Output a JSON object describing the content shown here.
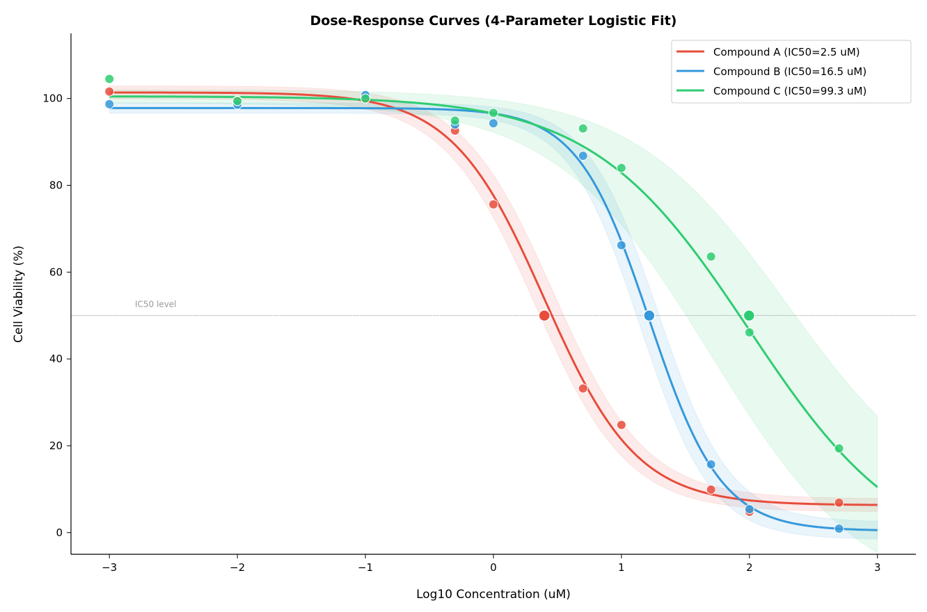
{
  "chart_data": {
    "type": "line",
    "title": "Dose-Response Curves (4-Parameter Logistic Fit)",
    "xlabel": "Log10 Concentration (uM)",
    "ylabel": "Cell Viability (%)",
    "xlim": [
      -3.3,
      3.3
    ],
    "ylim": [
      -5,
      115
    ],
    "xticks": [
      -3,
      -2,
      -1,
      0,
      1,
      2,
      3
    ],
    "xtick_labels": [
      "−3",
      "−2",
      "−1",
      "0",
      "1",
      "2",
      "3"
    ],
    "yticks": [
      0,
      20,
      40,
      60,
      80,
      100
    ],
    "ytick_labels": [
      "0",
      "20",
      "40",
      "60",
      "80",
      "100"
    ],
    "grid": false,
    "legend_position": "top-right",
    "reference_line": {
      "y": 50,
      "label": "IC50 level",
      "color": "#999999"
    },
    "x": [
      -3,
      -2,
      -1,
      -0.3,
      0,
      0.7,
      1,
      1.7,
      2,
      2.7
    ],
    "series": [
      {
        "name": "Compound A (IC50=2.5 uM)",
        "color": "#e74c3c",
        "points": [
          101.6,
          99.5,
          100.0,
          92.6,
          75.6,
          33.2,
          24.8,
          9.9,
          4.8,
          6.9
        ],
        "fit": {
          "top": 101.4,
          "bottom": 6.3,
          "log_ic50": 0.398,
          "hill": 1.2
        },
        "ci": {
          "d_log_ic50": 0.07,
          "d_top": 1.5,
          "d_bottom": 1.5
        }
      },
      {
        "name": "Compound B (IC50=16.5 uM)",
        "color": "#3498db",
        "points": [
          98.7,
          98.6,
          100.8,
          94.0,
          94.3,
          86.8,
          66.2,
          15.7,
          5.4,
          0.9
        ],
        "fit": {
          "top": 97.8,
          "bottom": 0.4,
          "log_ic50": 1.217,
          "hill": 1.55
        },
        "ci": {
          "d_log_ic50": 0.07,
          "d_top": 1.2,
          "d_bottom": 2.0
        }
      },
      {
        "name": "Compound C (IC50=99.3 uM)",
        "color": "#2ecc71",
        "points": [
          104.5,
          99.4,
          100.0,
          94.9,
          96.7,
          93.1,
          84.0,
          63.6,
          46.1,
          19.4
        ],
        "fit": {
          "top": 100.5,
          "bottom": -7,
          "log_ic50": 1.997,
          "hill": 0.71
        },
        "ci": {
          "d_log_ic50": 0.3,
          "d_top": 1.5,
          "d_bottom": 10
        }
      }
    ]
  }
}
